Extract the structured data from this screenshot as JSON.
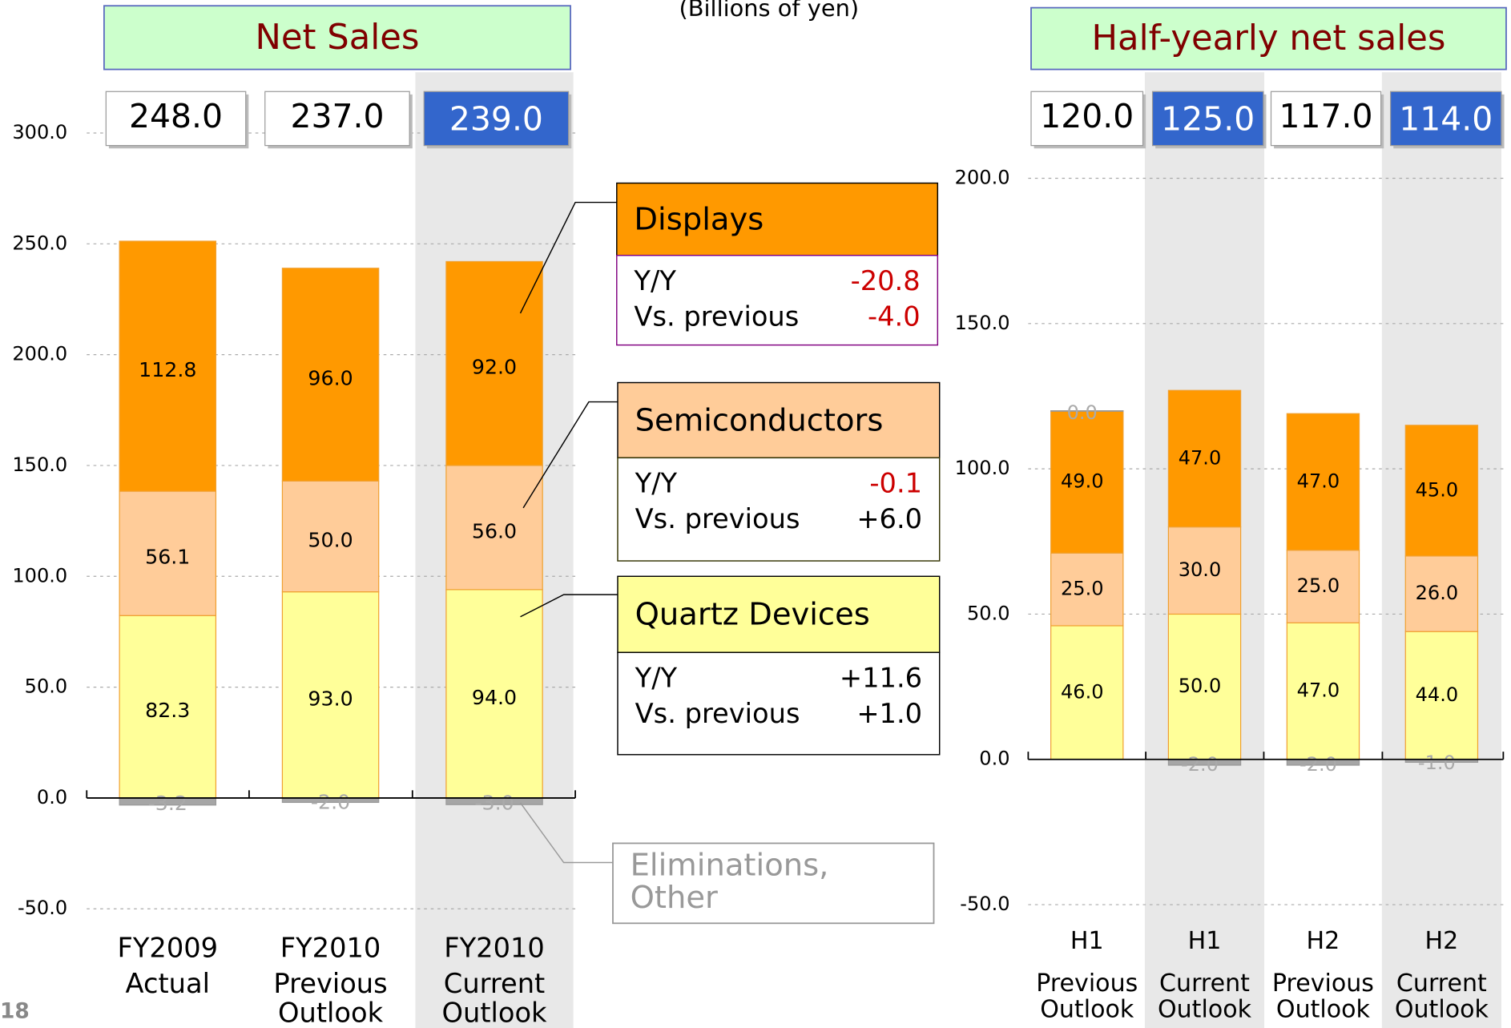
{
  "page_number": "18",
  "unit": "(Billions of yen)",
  "chart_data": [
    {
      "type": "bar",
      "stacked": true,
      "title": "Net Sales",
      "categories": [
        "FY2009 Actual",
        "FY2010 Previous Outlook",
        "FY2010 Current Outlook"
      ],
      "row_labels": [
        "Y/Y",
        "Vs. previous"
      ],
      "series": [
        {
          "name": "Quartz Devices",
          "color": "#ffff99",
          "values": [
            82.3,
            93,
            94
          ],
          "value_labels": [
            "82.3",
            "93.0",
            "94.0"
          ],
          "yoy": "+11.6",
          "vs_previous": "+1.0"
        },
        {
          "name": "Semiconductors",
          "color": "#ffcc99",
          "values": [
            56.1,
            50,
            56
          ],
          "value_labels": [
            "56.1",
            "50.0",
            "56.0"
          ],
          "yoy": "-0.1",
          "vs_previous": "+6.0"
        },
        {
          "name": "Displays",
          "color": "#ff9900",
          "values": [
            112.8,
            96,
            92
          ],
          "value_labels": [
            "112.8",
            "96.0",
            "92.0"
          ],
          "yoy": "-20.8",
          "vs_previous": "-4.0"
        },
        {
          "name": "Eliminations, Other",
          "color": "#a6a6a6",
          "values": [
            -3.2,
            -2,
            -3
          ],
          "value_labels": [
            "-3.2",
            "-2.0",
            "-3.0"
          ]
        }
      ],
      "totals": [
        {
          "value": 248,
          "label": "248.0"
        },
        {
          "value": 237,
          "label": "237.0"
        },
        {
          "value": 239,
          "label": "239.0"
        }
      ],
      "highlight": [
        false,
        false,
        true
      ],
      "ylim": [
        -50,
        300
      ],
      "yticks": [
        {
          "value": -50,
          "label": "-50.0"
        },
        {
          "value": 0,
          "label": "0.0"
        },
        {
          "value": 50,
          "label": "50.0"
        },
        {
          "value": 100,
          "label": "100.0"
        },
        {
          "value": 150,
          "label": "150.0"
        },
        {
          "value": 200,
          "label": "200.0"
        },
        {
          "value": 250,
          "label": "250.0"
        },
        {
          "value": 300,
          "label": "300.0"
        }
      ],
      "grid": true
    },
    {
      "type": "bar",
      "stacked": true,
      "title": "Half-yearly net sales",
      "categories": [
        "H1 Previous Outlook",
        "H1 Current Outlook",
        "H2 Previous Outlook",
        "H2 Current Outlook"
      ],
      "series": [
        {
          "name": "Quartz Devices",
          "color": "#ffff99",
          "values": [
            46,
            50,
            47,
            44
          ],
          "value_labels": [
            "46.0",
            "50.0",
            "47.0",
            "44.0"
          ]
        },
        {
          "name": "Semiconductors",
          "color": "#ffcc99",
          "values": [
            25,
            30,
            25,
            26
          ],
          "value_labels": [
            "25.0",
            "30.0",
            "25.0",
            "26.0"
          ]
        },
        {
          "name": "Displays",
          "color": "#ff9900",
          "values": [
            49,
            47,
            47,
            45
          ],
          "value_labels": [
            "49.0",
            "47.0",
            "47.0",
            "45.0"
          ]
        },
        {
          "name": "Eliminations, Other",
          "color": "#a6a6a6",
          "values": [
            0,
            -2,
            -2,
            -1
          ],
          "value_labels": [
            "0.0",
            "-2.0",
            "-2.0",
            "-1.0"
          ]
        }
      ],
      "totals": [
        {
          "value": 120,
          "label": "120.0"
        },
        {
          "value": 125,
          "label": "125.0"
        },
        {
          "value": 117,
          "label": "117.0"
        },
        {
          "value": 114,
          "label": "114.0"
        }
      ],
      "highlight": [
        false,
        true,
        false,
        true
      ],
      "ylim": [
        -50,
        200
      ],
      "yticks": [
        {
          "value": -50,
          "label": "-50.0"
        },
        {
          "value": 0,
          "label": "0.0"
        },
        {
          "value": 50,
          "label": "50.0"
        },
        {
          "value": 100,
          "label": "100.0"
        },
        {
          "value": 150,
          "label": "150.0"
        },
        {
          "value": 200,
          "label": "200.0"
        }
      ],
      "grid": true
    }
  ]
}
